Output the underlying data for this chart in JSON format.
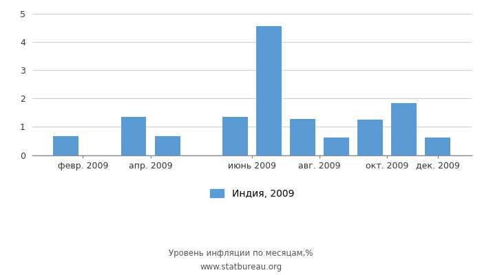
{
  "values": [
    0.68,
    1.35,
    0.67,
    1.35,
    4.55,
    1.28,
    0.63,
    1.25,
    1.84,
    0.62
  ],
  "bar_positions": [
    1,
    3,
    4,
    6,
    7,
    8,
    9,
    10,
    11,
    12
  ],
  "xtick_positions": [
    1.5,
    3.5,
    6.5,
    8.5,
    10.5,
    12
  ],
  "xtick_labels": [
    "февр. 2009",
    "апр. 2009",
    "июнь 2009",
    "авг. 2009",
    "окт. 2009",
    "дек. 2009"
  ],
  "bar_color": "#5b9bd5",
  "ylim": [
    0,
    5
  ],
  "yticks": [
    0,
    1,
    2,
    3,
    4,
    5
  ],
  "legend_label": "Индия, 2009",
  "footer_line1": "Уровень инфляции по месяцам,%",
  "footer_line2": "www.statbureau.org",
  "background_color": "#ffffff",
  "bar_width": 0.75,
  "grid_color": "#d0d0d0",
  "tick_color": "#888888",
  "text_color": "#555555"
}
